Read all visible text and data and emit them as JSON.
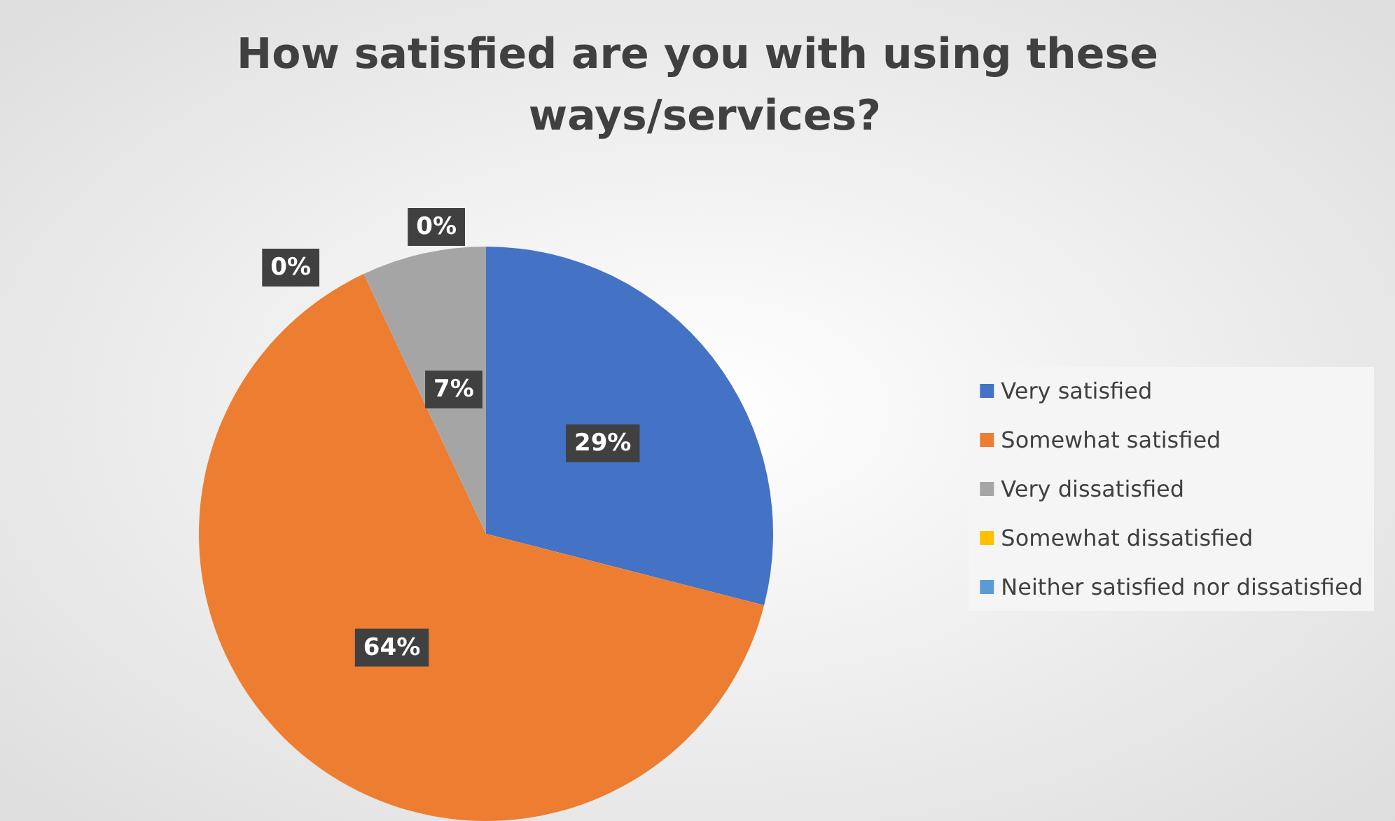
{
  "chart_data": {
    "type": "pie",
    "title": "How satisfied are you with using these ways/services?",
    "categories": [
      "Very satisfied",
      "Somewhat satisfied",
      "Very dissatisfied",
      "Somewhat dissatisfied",
      "Neither satisfied nor dissatisfied"
    ],
    "values": [
      29,
      64,
      7,
      0,
      0
    ],
    "colors": [
      "#4472c4",
      "#ed7d31",
      "#a5a5a5",
      "#ffc000",
      "#5b9bd5"
    ],
    "value_labels": [
      "29%",
      "64%",
      "7%",
      "0%",
      "0%"
    ],
    "legend": "right"
  }
}
